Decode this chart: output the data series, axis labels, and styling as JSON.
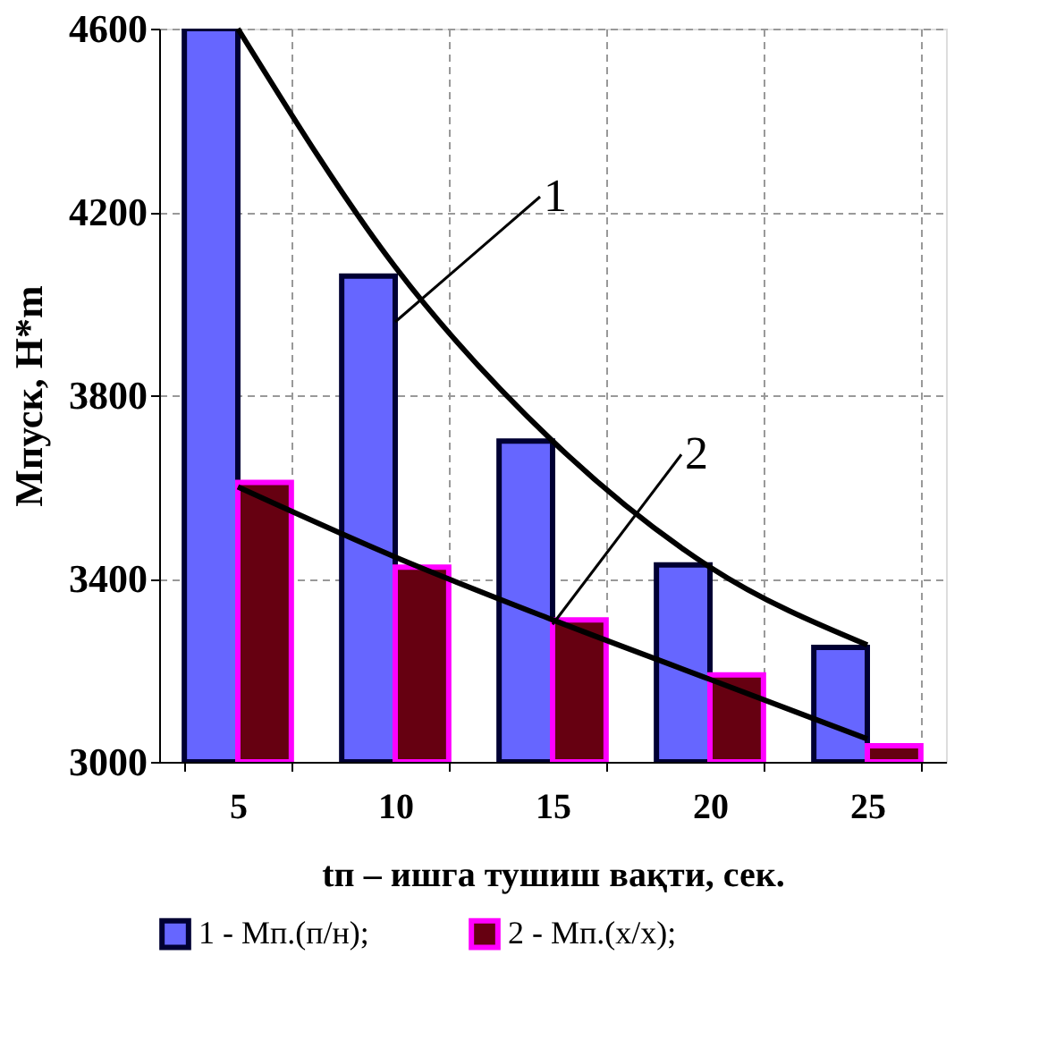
{
  "chart_data": {
    "type": "bar",
    "xlabel": "tп – ишга тушиш вақти, сек.",
    "ylabel": "Мпуск, Н*m",
    "categories": [
      "5",
      "10",
      "15",
      "20",
      "25"
    ],
    "series": [
      {
        "name": "1 - Мп.(п/н);",
        "color": "#6666ff",
        "values": [
          4600,
          4060,
          3700,
          3430,
          3250
        ]
      },
      {
        "name": "2 - Мп.(х/х);",
        "color": "#660011",
        "values": [
          3610,
          3425,
          3310,
          3190,
          3035
        ]
      },
      {
        "type": "line",
        "color": "#000000",
        "x": [
          "5",
          "10",
          "15",
          "20",
          "25"
        ],
        "values": [
          4600,
          4080,
          3700,
          3425,
          3255
        ]
      },
      {
        "type": "line",
        "color": "#000000",
        "x": [
          "5",
          "10",
          "15",
          "20",
          "25"
        ],
        "values": [
          3600,
          3447,
          3310,
          3180,
          3050
        ]
      }
    ],
    "ylim": [
      3000,
      4600
    ],
    "yticks": [
      3000,
      3400,
      3800,
      4200,
      4600
    ],
    "grid": true,
    "legend": "bottom",
    "annotations": [
      {
        "text": "1",
        "x": "10",
        "y": 3960
      },
      {
        "text": "2",
        "x": "15",
        "y": 3300
      }
    ]
  }
}
